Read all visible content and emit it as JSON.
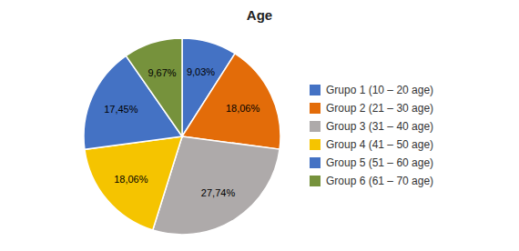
{
  "chart_data": {
    "type": "pie",
    "title": "Age",
    "categories": [
      "Grupo 1 (10 – 20 age)",
      "Group 2 (21 – 30 age)",
      "Group 3 (31 – 40 age)",
      "Group 4 (41 – 50 age)",
      "Group 5 (51 – 60 age)",
      "Group 6 (61 – 70 age)"
    ],
    "values": [
      9.03,
      18.06,
      27.74,
      18.06,
      17.45,
      9.67
    ],
    "value_labels": [
      "9,03%",
      "18,06%",
      "27,74%",
      "18,06%",
      "17,45%",
      "9,67%"
    ],
    "colors": [
      "#4472C4",
      "#E36C09",
      "#AEAAAA",
      "#F5C400",
      "#4472C4",
      "#76923C"
    ],
    "data_labels": true,
    "legend": "right"
  }
}
